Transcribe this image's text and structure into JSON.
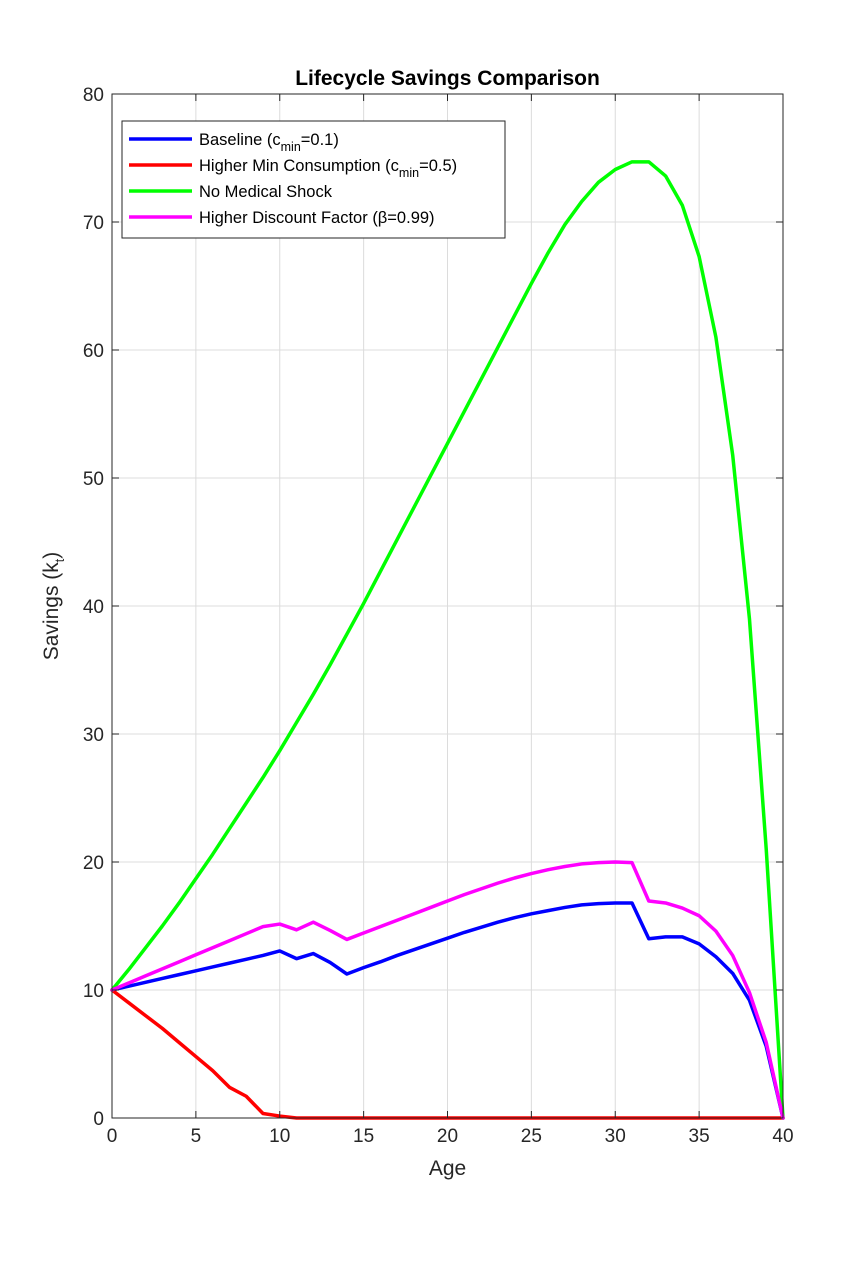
{
  "chart_data": {
    "type": "line",
    "title": "Lifecycle Savings Comparison",
    "xlabel": "Age",
    "ylabel": {
      "main": "Savings (k",
      "sub": "t",
      "close": ")"
    },
    "xlim": [
      0,
      40
    ],
    "ylim": [
      0,
      80
    ],
    "xticks": [
      0,
      5,
      10,
      15,
      20,
      25,
      30,
      35,
      40
    ],
    "yticks": [
      0,
      10,
      20,
      30,
      40,
      50,
      60,
      70,
      80
    ],
    "grid": true,
    "legend_position": "top-left",
    "series": [
      {
        "key": "baseline",
        "color": "#0000ff",
        "legend": {
          "pre": "Baseline (c",
          "sub": "min",
          "post": "=0.1)"
        },
        "x": [
          0,
          1,
          2,
          3,
          4,
          5,
          6,
          7,
          8,
          9,
          10,
          11,
          12,
          13,
          14,
          15,
          16,
          17,
          18,
          19,
          20,
          21,
          22,
          23,
          24,
          25,
          26,
          27,
          28,
          29,
          30,
          31,
          32,
          33,
          34,
          35,
          36,
          37,
          38,
          39,
          40
        ],
        "y": [
          10,
          10.3,
          10.6,
          10.9,
          11.2,
          11.5,
          11.8,
          12.1,
          12.4,
          12.7,
          13.05,
          12.45,
          12.85,
          12.15,
          11.25,
          11.75,
          12.2,
          12.7,
          13.15,
          13.6,
          14.05,
          14.5,
          14.9,
          15.3,
          15.65,
          15.95,
          16.2,
          16.45,
          16.65,
          16.75,
          16.8,
          16.8,
          14.0,
          14.15,
          14.15,
          13.6,
          12.6,
          11.3,
          9.2,
          5.6,
          0
        ]
      },
      {
        "key": "higher-min-consumption",
        "color": "#ff0000",
        "legend": {
          "pre": "Higher Min Consumption (c",
          "sub": "min",
          "post": "=0.5)"
        },
        "x": [
          0,
          1,
          2,
          3,
          4,
          5,
          6,
          7,
          8,
          9,
          10,
          11,
          12,
          13,
          14,
          15,
          16,
          17,
          18,
          19,
          20,
          21,
          22,
          23,
          24,
          25,
          26,
          27,
          28,
          29,
          30,
          31,
          32,
          33,
          34,
          35,
          36,
          37,
          38,
          39,
          40
        ],
        "y": [
          10,
          9.0,
          8.0,
          7.0,
          5.9,
          4.8,
          3.7,
          2.4,
          1.7,
          0.35,
          0.15,
          0,
          0,
          0,
          0,
          0,
          0,
          0,
          0,
          0,
          0,
          0,
          0,
          0,
          0,
          0,
          0,
          0,
          0,
          0,
          0,
          0,
          0,
          0,
          0,
          0,
          0,
          0,
          0,
          0,
          0
        ]
      },
      {
        "key": "no-medical-shock",
        "color": "#00ff00",
        "legend": {
          "pre": "No Medical Shock",
          "sub": "",
          "post": ""
        },
        "x": [
          0,
          1,
          2,
          3,
          4,
          5,
          6,
          7,
          8,
          9,
          10,
          11,
          12,
          13,
          14,
          15,
          16,
          17,
          18,
          19,
          20,
          21,
          22,
          23,
          24,
          25,
          26,
          27,
          28,
          29,
          30,
          31,
          32,
          33,
          34,
          35,
          36,
          37,
          38,
          39,
          40
        ],
        "y": [
          10,
          11.6,
          13.3,
          15.0,
          16.8,
          18.7,
          20.6,
          22.6,
          24.6,
          26.6,
          28.7,
          30.9,
          33.1,
          35.4,
          37.8,
          40.2,
          42.7,
          45.2,
          47.7,
          50.2,
          52.7,
          55.2,
          57.7,
          60.2,
          62.7,
          65.2,
          67.6,
          69.8,
          71.6,
          73.1,
          74.1,
          74.7,
          74.7,
          73.6,
          71.3,
          67.3,
          61.0,
          51.8,
          39.0,
          21.0,
          0
        ]
      },
      {
        "key": "higher-discount-factor",
        "color": "#ff00ff",
        "legend": {
          "pre": "Higher Discount Factor (β=0.99)",
          "sub": "",
          "post": ""
        },
        "x": [
          0,
          1,
          2,
          3,
          4,
          5,
          6,
          7,
          8,
          9,
          10,
          11,
          12,
          13,
          14,
          15,
          16,
          17,
          18,
          19,
          20,
          21,
          22,
          23,
          24,
          25,
          26,
          27,
          28,
          29,
          30,
          31,
          32,
          33,
          34,
          35,
          36,
          37,
          38,
          39,
          40
        ],
        "y": [
          10,
          10.55,
          11.1,
          11.65,
          12.2,
          12.75,
          13.3,
          13.85,
          14.4,
          14.95,
          15.15,
          14.7,
          15.3,
          14.65,
          13.95,
          14.45,
          14.95,
          15.45,
          15.95,
          16.45,
          16.95,
          17.45,
          17.9,
          18.35,
          18.75,
          19.1,
          19.4,
          19.65,
          19.85,
          19.95,
          20.0,
          19.95,
          16.95,
          16.8,
          16.4,
          15.8,
          14.6,
          12.7,
          9.8,
          5.9,
          0
        ]
      }
    ]
  }
}
